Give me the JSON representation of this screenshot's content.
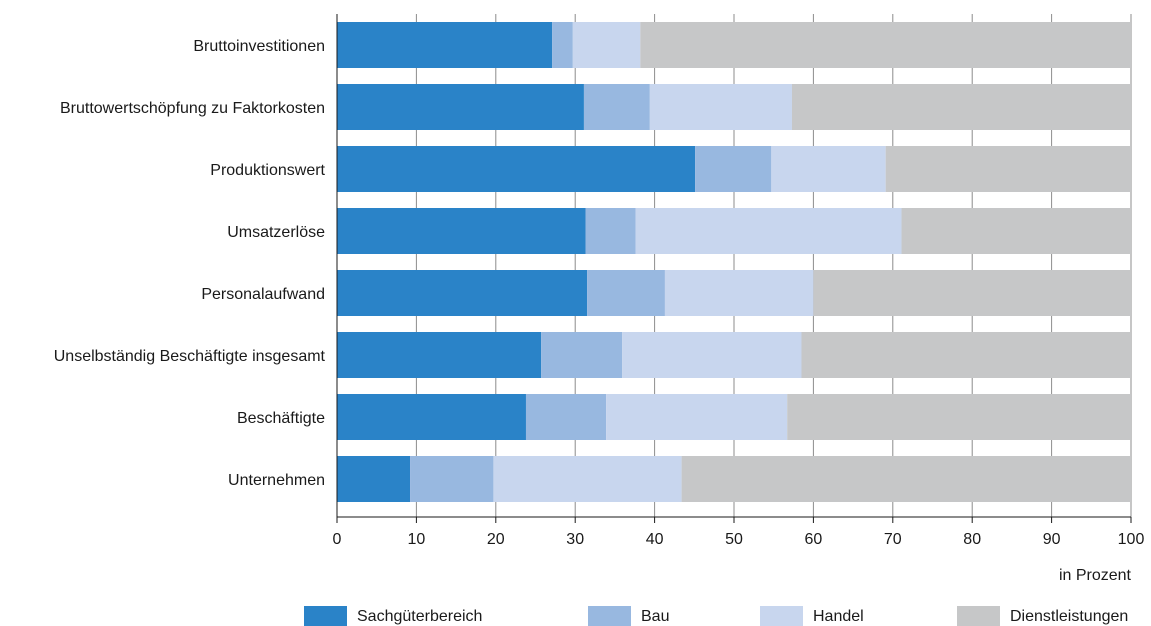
{
  "chart_data": {
    "type": "bar",
    "orientation": "horizontal",
    "stacked": true,
    "categories": [
      "Bruttoinvestitionen",
      "Bruttowertschöpfung zu Faktorkosten",
      "Produktionswert",
      "Umsatzerlöse",
      "Personalaufwand",
      "Unselbständig Beschäftigte insgesamt",
      "Beschäftigte",
      "Unternehmen"
    ],
    "series": [
      {
        "name": "Sachgüterbereich",
        "color": "#2a83c8",
        "values": [
          27.1,
          31.1,
          45.1,
          31.3,
          31.5,
          25.7,
          23.8,
          9.2
        ]
      },
      {
        "name": "Bau",
        "color": "#98b8e0",
        "values": [
          2.6,
          8.3,
          9.6,
          6.3,
          9.8,
          10.2,
          10.1,
          10.5
        ]
      },
      {
        "name": "Handel",
        "color": "#c8d6ee",
        "values": [
          8.5,
          17.9,
          14.4,
          33.5,
          18.7,
          22.6,
          22.8,
          23.7
        ]
      },
      {
        "name": "Dienstleistungen",
        "color": "#c6c7c8",
        "values": [
          61.8,
          42.7,
          30.9,
          28.9,
          40.0,
          41.5,
          43.3,
          56.6
        ]
      }
    ],
    "xlim": [
      0,
      100
    ],
    "xticks": [
      "0",
      "10",
      "20",
      "30",
      "40",
      "50",
      "60",
      "70",
      "80",
      "90",
      "100"
    ],
    "xlabel": "in Prozent",
    "grid": true,
    "legend_position": "bottom"
  }
}
